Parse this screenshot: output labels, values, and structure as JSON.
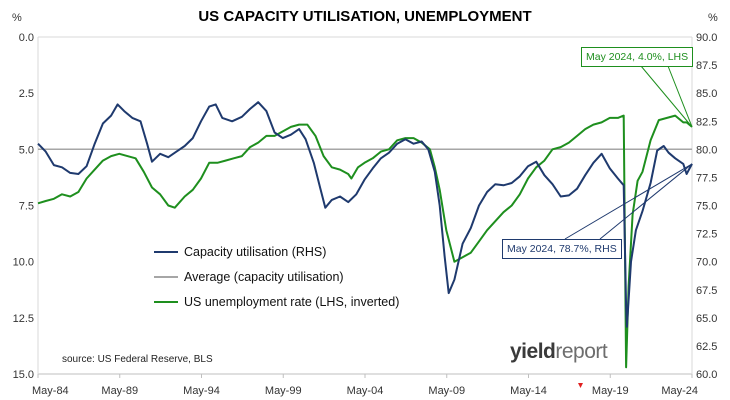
{
  "chart_data": {
    "type": "line",
    "title": "US CAPACITY UTILISATION, UNEMPLOYMENT",
    "left_axis": {
      "unit": "%",
      "ylim": [
        0.0,
        15.0
      ],
      "inverted": true,
      "ticks": [
        "0.0",
        "2.5",
        "5.0",
        "7.5",
        "10.0",
        "12.5",
        "15.0"
      ]
    },
    "right_axis": {
      "unit": "%",
      "ylim": [
        60.0,
        90.0
      ],
      "ticks": [
        "90.0",
        "87.5",
        "85.0",
        "82.5",
        "80.0",
        "77.5",
        "75.0",
        "72.5",
        "70.0",
        "67.5",
        "65.0",
        "62.5",
        "60.0"
      ]
    },
    "x_ticks": [
      "May-84",
      "May-89",
      "May-94",
      "May-99",
      "May-04",
      "May-09",
      "May-14",
      "May-19",
      "May-24"
    ],
    "x_range": [
      1984.33,
      2024.33
    ],
    "series": [
      {
        "name": "Capacity utilisation (RHS)",
        "axis": "right",
        "color": "#1f3a6e",
        "points": [
          [
            1984.33,
            80.5
          ],
          [
            1984.8,
            79.8
          ],
          [
            1985.3,
            78.6
          ],
          [
            1985.8,
            78.4
          ],
          [
            1986.3,
            77.9
          ],
          [
            1986.8,
            77.8
          ],
          [
            1987.3,
            78.5
          ],
          [
            1987.8,
            80.5
          ],
          [
            1988.3,
            82.3
          ],
          [
            1988.8,
            83.0
          ],
          [
            1989.2,
            84.0
          ],
          [
            1989.6,
            83.4
          ],
          [
            1990.1,
            82.8
          ],
          [
            1990.6,
            82.5
          ],
          [
            1991.0,
            80.5
          ],
          [
            1991.3,
            78.9
          ],
          [
            1991.8,
            79.6
          ],
          [
            1992.3,
            79.3
          ],
          [
            1992.8,
            79.8
          ],
          [
            1993.3,
            80.3
          ],
          [
            1993.8,
            81.0
          ],
          [
            1994.3,
            82.5
          ],
          [
            1994.8,
            83.8
          ],
          [
            1995.2,
            84.0
          ],
          [
            1995.6,
            82.8
          ],
          [
            1996.2,
            82.5
          ],
          [
            1996.8,
            82.9
          ],
          [
            1997.3,
            83.6
          ],
          [
            1997.8,
            84.2
          ],
          [
            1998.3,
            83.4
          ],
          [
            1998.8,
            81.5
          ],
          [
            1999.3,
            81.0
          ],
          [
            1999.8,
            81.3
          ],
          [
            2000.3,
            81.8
          ],
          [
            2000.7,
            80.9
          ],
          [
            2001.2,
            78.8
          ],
          [
            2001.6,
            76.5
          ],
          [
            2001.9,
            74.8
          ],
          [
            2002.3,
            75.5
          ],
          [
            2002.8,
            75.8
          ],
          [
            2003.3,
            75.3
          ],
          [
            2003.8,
            76.0
          ],
          [
            2004.3,
            77.3
          ],
          [
            2004.8,
            78.3
          ],
          [
            2005.3,
            79.2
          ],
          [
            2005.8,
            79.7
          ],
          [
            2006.3,
            80.5
          ],
          [
            2006.8,
            80.9
          ],
          [
            2007.3,
            80.5
          ],
          [
            2007.8,
            80.7
          ],
          [
            2008.2,
            80.0
          ],
          [
            2008.6,
            78.0
          ],
          [
            2008.9,
            75.0
          ],
          [
            2009.2,
            70.5
          ],
          [
            2009.45,
            67.2
          ],
          [
            2009.8,
            68.4
          ],
          [
            2010.3,
            71.6
          ],
          [
            2010.8,
            73.0
          ],
          [
            2011.3,
            75.0
          ],
          [
            2011.8,
            76.2
          ],
          [
            2012.3,
            76.9
          ],
          [
            2012.8,
            76.8
          ],
          [
            2013.3,
            77.0
          ],
          [
            2013.8,
            77.6
          ],
          [
            2014.3,
            78.5
          ],
          [
            2014.8,
            78.9
          ],
          [
            2015.3,
            77.7
          ],
          [
            2015.8,
            76.9
          ],
          [
            2016.3,
            75.8
          ],
          [
            2016.8,
            75.9
          ],
          [
            2017.3,
            76.5
          ],
          [
            2017.8,
            77.7
          ],
          [
            2018.3,
            78.8
          ],
          [
            2018.8,
            79.6
          ],
          [
            2019.3,
            78.3
          ],
          [
            2019.8,
            77.4
          ],
          [
            2020.15,
            76.8
          ],
          [
            2020.3,
            66.0
          ],
          [
            2020.35,
            64.2
          ],
          [
            2020.6,
            70.0
          ],
          [
            2020.9,
            72.8
          ],
          [
            2021.3,
            74.5
          ],
          [
            2021.8,
            77.0
          ],
          [
            2022.2,
            79.9
          ],
          [
            2022.6,
            80.3
          ],
          [
            2022.9,
            79.7
          ],
          [
            2023.3,
            79.2
          ],
          [
            2023.8,
            78.7
          ],
          [
            2024.0,
            77.8
          ],
          [
            2024.33,
            78.7
          ]
        ]
      },
      {
        "name": "Average (capacity utilisation)",
        "axis": "right",
        "color": "#a6a6a6",
        "points": [
          [
            1984.33,
            80.0
          ],
          [
            2024.33,
            80.0
          ]
        ]
      },
      {
        "name": "US unemployment rate (LHS, inverted)",
        "axis": "left",
        "color": "#1e8f1e",
        "points": [
          [
            1984.33,
            7.4
          ],
          [
            1984.8,
            7.3
          ],
          [
            1985.3,
            7.2
          ],
          [
            1985.8,
            7.0
          ],
          [
            1986.3,
            7.1
          ],
          [
            1986.8,
            6.9
          ],
          [
            1987.3,
            6.3
          ],
          [
            1987.8,
            5.9
          ],
          [
            1988.3,
            5.5
          ],
          [
            1988.8,
            5.3
          ],
          [
            1989.3,
            5.2
          ],
          [
            1989.8,
            5.3
          ],
          [
            1990.3,
            5.4
          ],
          [
            1990.8,
            6.0
          ],
          [
            1991.3,
            6.7
          ],
          [
            1991.8,
            7.0
          ],
          [
            1992.3,
            7.5
          ],
          [
            1992.7,
            7.6
          ],
          [
            1993.3,
            7.1
          ],
          [
            1993.8,
            6.8
          ],
          [
            1994.3,
            6.3
          ],
          [
            1994.8,
            5.6
          ],
          [
            1995.3,
            5.6
          ],
          [
            1995.8,
            5.5
          ],
          [
            1996.3,
            5.4
          ],
          [
            1996.8,
            5.3
          ],
          [
            1997.3,
            4.9
          ],
          [
            1997.8,
            4.7
          ],
          [
            1998.3,
            4.4
          ],
          [
            1998.8,
            4.4
          ],
          [
            1999.3,
            4.2
          ],
          [
            1999.8,
            4.0
          ],
          [
            2000.3,
            3.9
          ],
          [
            2000.8,
            3.9
          ],
          [
            2001.3,
            4.4
          ],
          [
            2001.8,
            5.3
          ],
          [
            2002.3,
            5.8
          ],
          [
            2002.8,
            5.9
          ],
          [
            2003.3,
            6.1
          ],
          [
            2003.5,
            6.3
          ],
          [
            2003.9,
            5.8
          ],
          [
            2004.3,
            5.6
          ],
          [
            2004.8,
            5.4
          ],
          [
            2005.3,
            5.1
          ],
          [
            2005.8,
            5.0
          ],
          [
            2006.3,
            4.6
          ],
          [
            2006.8,
            4.5
          ],
          [
            2007.3,
            4.5
          ],
          [
            2007.8,
            4.7
          ],
          [
            2008.3,
            5.0
          ],
          [
            2008.6,
            5.8
          ],
          [
            2008.9,
            6.8
          ],
          [
            2009.3,
            8.6
          ],
          [
            2009.8,
            10.0
          ],
          [
            2010.3,
            9.8
          ],
          [
            2010.8,
            9.6
          ],
          [
            2011.3,
            9.1
          ],
          [
            2011.8,
            8.6
          ],
          [
            2012.3,
            8.2
          ],
          [
            2012.8,
            7.8
          ],
          [
            2013.3,
            7.5
          ],
          [
            2013.8,
            7.0
          ],
          [
            2014.3,
            6.3
          ],
          [
            2014.8,
            5.8
          ],
          [
            2015.3,
            5.5
          ],
          [
            2015.8,
            5.0
          ],
          [
            2016.3,
            4.9
          ],
          [
            2016.8,
            4.7
          ],
          [
            2017.3,
            4.4
          ],
          [
            2017.8,
            4.1
          ],
          [
            2018.3,
            3.9
          ],
          [
            2018.8,
            3.8
          ],
          [
            2019.3,
            3.6
          ],
          [
            2019.8,
            3.6
          ],
          [
            2020.15,
            3.5
          ],
          [
            2020.3,
            14.7
          ],
          [
            2020.45,
            11.1
          ],
          [
            2020.7,
            7.9
          ],
          [
            2021.0,
            6.4
          ],
          [
            2021.3,
            6.0
          ],
          [
            2021.8,
            4.6
          ],
          [
            2022.3,
            3.7
          ],
          [
            2022.8,
            3.6
          ],
          [
            2023.3,
            3.5
          ],
          [
            2023.8,
            3.8
          ],
          [
            2024.0,
            3.8
          ],
          [
            2024.33,
            4.0
          ]
        ]
      }
    ],
    "legend": {
      "placement": "bottom-left inside plot"
    },
    "annotations": [
      {
        "text": "May 2024, 4.0%, LHS",
        "series": 2,
        "x": 2024.33,
        "y": 4.0,
        "color": "#1e8f1e"
      },
      {
        "text": "May 2024, 78.7%, RHS",
        "series": 0,
        "x": 2024.33,
        "y": 78.7,
        "color": "#1f3a6e"
      }
    ],
    "grid": false
  },
  "source": "source: US Federal Reserve, BLS",
  "brand": {
    "part1": "yield",
    "part2": "report"
  }
}
